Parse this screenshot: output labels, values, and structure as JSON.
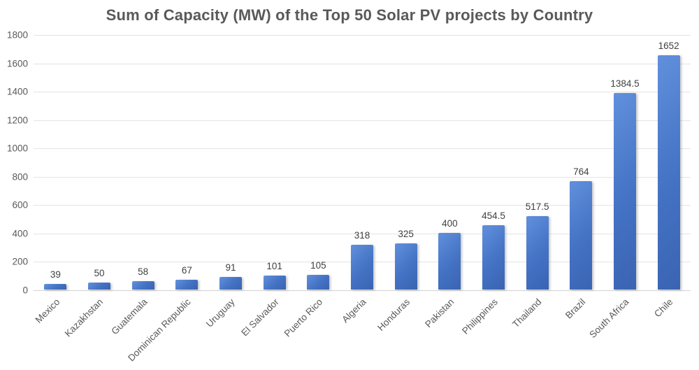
{
  "chart_data": {
    "type": "bar",
    "title": "Sum of Capacity (MW) of the Top 50 Solar PV projects by Country",
    "xlabel": "",
    "ylabel": "",
    "categories": [
      "Mexico",
      "Kazakhstan",
      "Guatemala",
      "Dominican Republic",
      "Uruguay",
      "El Salvador",
      "Puerto Rico",
      "Algeria",
      "Honduras",
      "Pakistan",
      "Philippines",
      "Thailand",
      "Brazil",
      "South Africa",
      "Chile"
    ],
    "values": [
      39,
      50,
      58,
      67,
      91,
      101,
      105,
      318,
      325,
      400,
      454.5,
      517.5,
      764,
      1384.5,
      1652
    ],
    "data_labels": [
      "39",
      "50",
      "58",
      "67",
      "91",
      "101",
      "105",
      "318",
      "325",
      "400",
      "454.5",
      "517.5",
      "764",
      "1384.5",
      "1652"
    ],
    "ylim": [
      0,
      1800
    ],
    "yticks": [
      0,
      200,
      400,
      600,
      800,
      1000,
      1200,
      1400,
      1600,
      1800
    ],
    "grid": "horizontal",
    "legend": "none",
    "xlabel_rotation_deg": -45,
    "colors": {
      "bar_main": "#4472C4",
      "bar_light": "#6190DC",
      "bar_dark": "#3A64B2",
      "grid": "#E4E4E4",
      "axis_line": "#D2D2D2",
      "title": "#595959",
      "value_label": "#404040",
      "tick_label": "#595959"
    }
  }
}
